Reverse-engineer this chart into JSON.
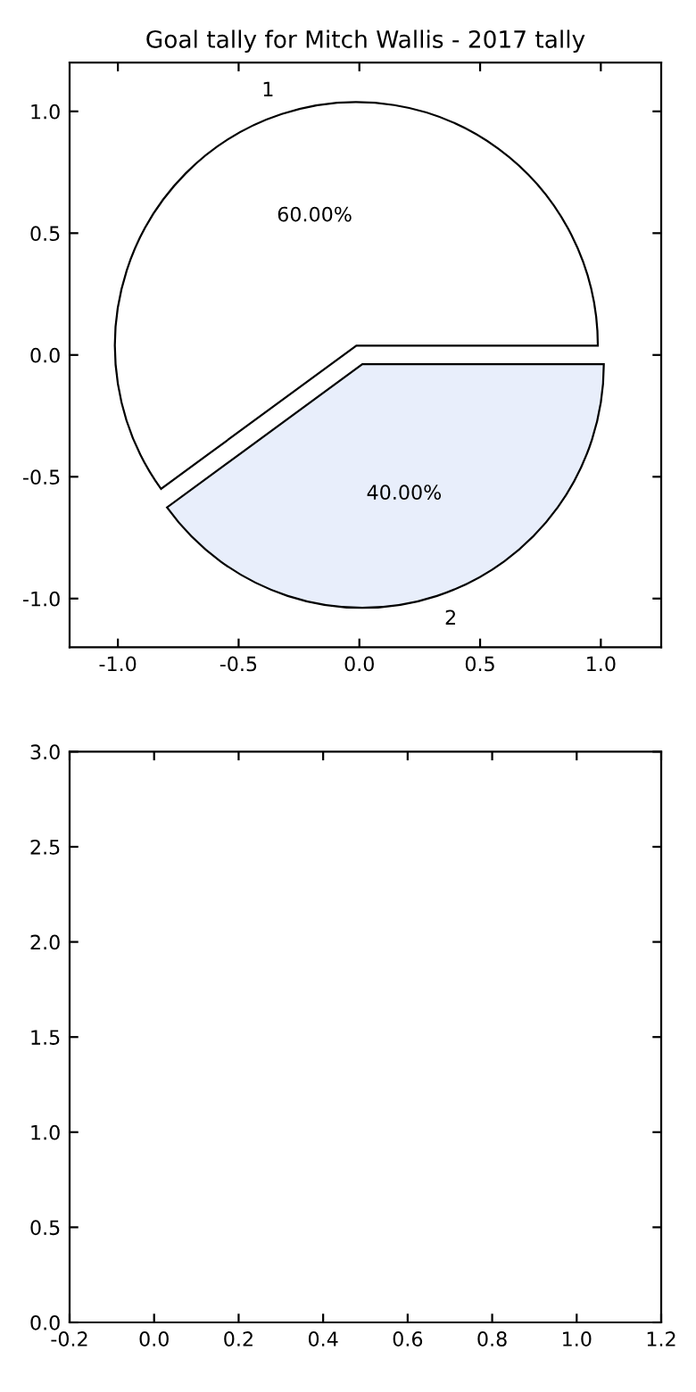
{
  "chart_data": [
    {
      "type": "scatter",
      "title": "Goal tally for Mitch Wallis - 2017 tally",
      "xlim": [
        -1.2,
        1.25
      ],
      "ylim": [
        -1.2,
        1.2
      ],
      "xticks": [
        {
          "value": -1.0,
          "label": "-1.0"
        },
        {
          "value": -0.5,
          "label": "-0.5"
        },
        {
          "value": 0.0,
          "label": "0.0"
        },
        {
          "value": 0.5,
          "label": "0.5"
        },
        {
          "value": 1.0,
          "label": "1.0"
        }
      ],
      "yticks": [
        {
          "value": -1.0,
          "label": "-1.0"
        },
        {
          "value": -0.5,
          "label": "-0.5"
        },
        {
          "value": 0.0,
          "label": "0.0"
        },
        {
          "value": 0.5,
          "label": "0.5"
        },
        {
          "value": 1.0,
          "label": "1.0"
        }
      ]
    },
    {
      "type": "pie",
      "categories": [
        "1",
        "2"
      ],
      "values": [
        60,
        40
      ],
      "colors": [
        "#ffffff",
        "#e8eefb"
      ],
      "value_labels": [
        "60.00%",
        "40.00%"
      ]
    },
    {
      "type": "scatter",
      "xlim": [
        -0.2,
        1.2
      ],
      "ylim": [
        0.0,
        3.0
      ],
      "xticks": [
        -0.2,
        {
          "value": 0.0,
          "label": "0.0"
        },
        0.2,
        0.4,
        0.6,
        0.8,
        {
          "value": 1.0,
          "label": "1.0"
        },
        1.2
      ],
      "yticks": [
        {
          "value": 0.0,
          "label": "0.0"
        },
        0.5,
        {
          "value": 1.0,
          "label": "1.0"
        },
        1.5,
        {
          "value": 2.0,
          "label": "2.0"
        },
        2.5,
        {
          "value": 3.0,
          "label": "3.0"
        }
      ]
    }
  ]
}
